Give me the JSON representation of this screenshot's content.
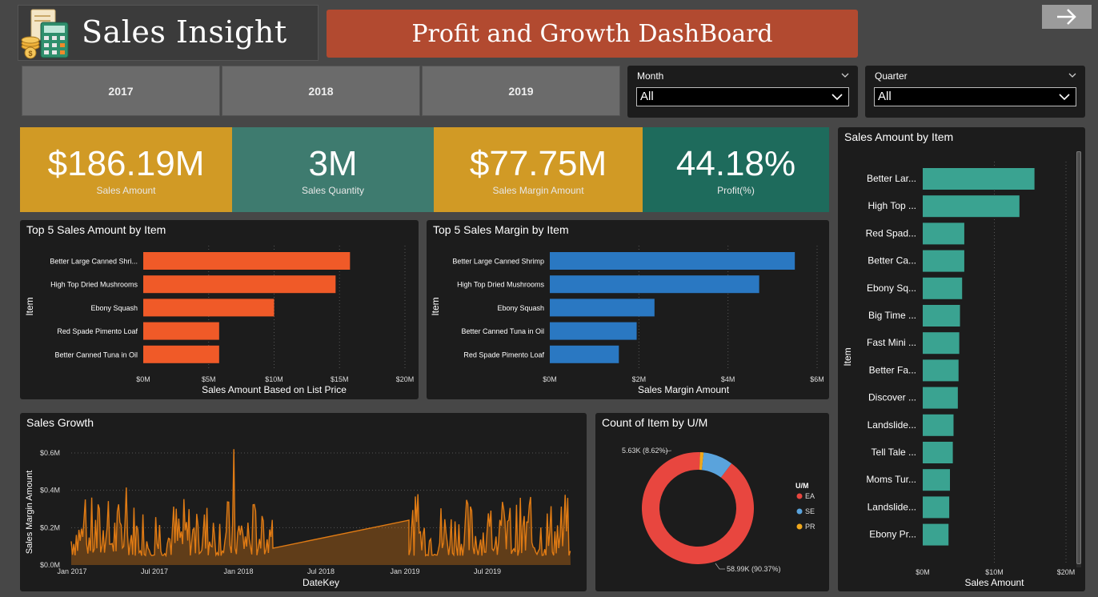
{
  "header": {
    "title": "Sales Insight",
    "banner": "Profit and Growth DashBoard"
  },
  "years": [
    "2017",
    "2018",
    "2019"
  ],
  "slicers": {
    "month": {
      "label": "Month",
      "value": "All"
    },
    "quarter": {
      "label": "Quarter",
      "value": "All"
    }
  },
  "kpis": [
    {
      "value": "$186.19M",
      "label": "Sales Amount",
      "color": "#d19a25"
    },
    {
      "value": "3M",
      "label": "Sales Quantity",
      "color": "#3e7b6f"
    },
    {
      "value": "$77.75M",
      "label": "Sales Margin Amount",
      "color": "#d19a25"
    },
    {
      "value": "44.18%",
      "label": "Profit(%)",
      "color": "#1e6b5c"
    }
  ],
  "chart_data": [
    {
      "id": "top5-sales",
      "type": "bar",
      "title": "Top 5 Sales Amount by Item",
      "xlabel": "Sales Amount Based on List Price",
      "ylabel": "Item",
      "categories": [
        "Better Large Canned Shri...",
        "High Top Dried Mushrooms",
        "Ebony Squash",
        "Red Spade Pimento Loaf",
        "Better Canned Tuna in Oil"
      ],
      "values": [
        15.8,
        14.7,
        10.0,
        5.8,
        5.8
      ],
      "xlim": [
        0,
        20
      ],
      "ticks": [
        "$0M",
        "$5M",
        "$10M",
        "$15M",
        "$20M"
      ],
      "color": "#f05a28"
    },
    {
      "id": "top5-margin",
      "type": "bar",
      "title": "Top 5 Sales Margin by Item",
      "xlabel": "Sales Margin Amount",
      "ylabel": "Item",
      "categories": [
        "Better Large Canned Shrimp",
        "High Top Dried Mushrooms",
        "Ebony Squash",
        "Better Canned Tuna in Oil",
        "Red Spade Pimento Loaf"
      ],
      "values": [
        5.5,
        4.7,
        2.35,
        1.95,
        1.55
      ],
      "xlim": [
        0,
        6
      ],
      "ticks": [
        "$0M",
        "$2M",
        "$4M",
        "$6M"
      ],
      "color": "#2a78c2"
    },
    {
      "id": "sales-by-item",
      "type": "bar",
      "title": "Sales Amount by Item",
      "xlabel": "Sales Amount",
      "ylabel": "Item",
      "categories": [
        "Better Lar...",
        "High Top ...",
        "Red Spad...",
        "Better Ca...",
        "Ebony Sq...",
        "Big Time ...",
        "Fast Mini ...",
        "Better Fa...",
        "Discover ...",
        "Landslide...",
        "Tell Tale ...",
        "Moms Tur...",
        "Landslide...",
        "Ebony Pr..."
      ],
      "values": [
        15.6,
        13.5,
        5.8,
        5.8,
        5.5,
        5.2,
        5.1,
        5.0,
        4.9,
        4.3,
        4.2,
        3.8,
        3.7,
        3.6
      ],
      "xlim": [
        0,
        20
      ],
      "ticks": [
        "$0M",
        "$10M",
        "$20M"
      ],
      "color": "#3aa391"
    },
    {
      "id": "sales-growth",
      "type": "area",
      "title": "Sales Growth",
      "xlabel": "DateKey",
      "ylabel": "Sales Margin Amount",
      "ylim": [
        0,
        0.6
      ],
      "yticks": [
        "$0.0M",
        "$0.2M",
        "$0.4M",
        "$0.6M"
      ],
      "xticks": [
        "Jan 2017",
        "Jul 2017",
        "Jan 2018",
        "Jul 2018",
        "Jan 2019",
        "Jul 2019"
      ],
      "color": "#e07b14"
    },
    {
      "id": "count-by-um",
      "type": "pie",
      "title": "Count of Item by U/M",
      "legend_title": "U/M",
      "categories": [
        "EA",
        "SE",
        "PR"
      ],
      "values": [
        90.37,
        8.62,
        1.01
      ],
      "colors": [
        "#e8463f",
        "#5aa3dc",
        "#f0a81c"
      ],
      "labels": {
        "EA": "58.99K (90.37%)",
        "SE": "5.63K (8.62%)"
      }
    }
  ]
}
